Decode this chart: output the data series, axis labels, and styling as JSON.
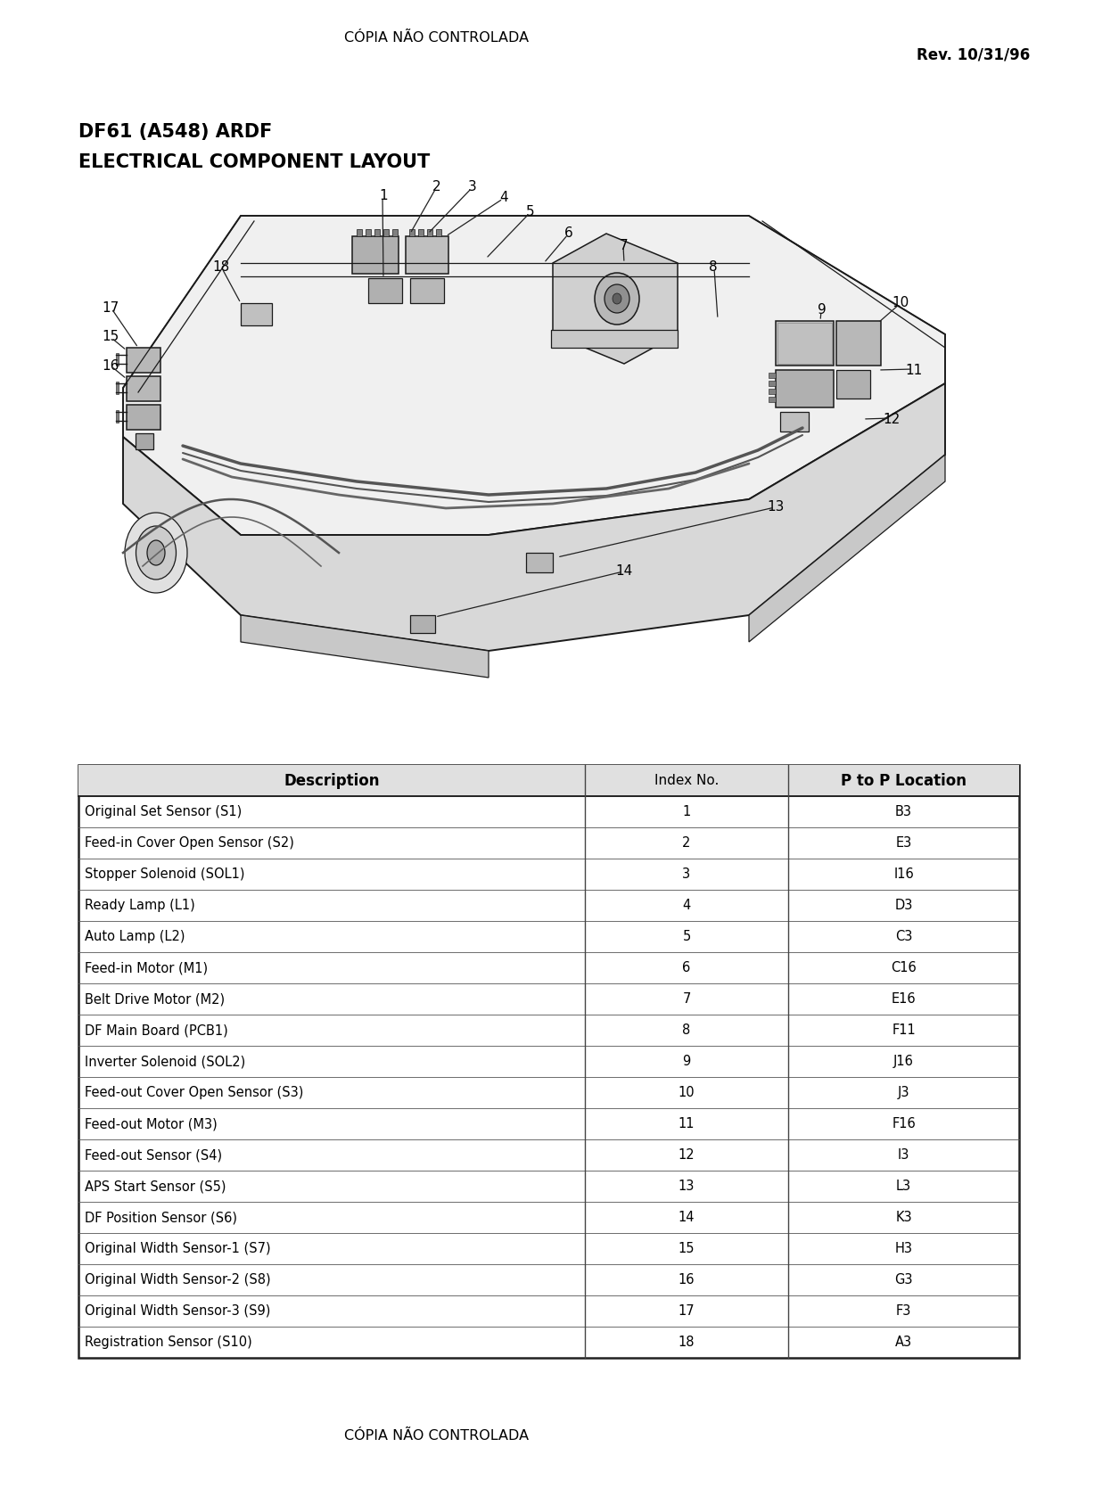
{
  "header_center": "CÓPIA NÃO CONTROLADA",
  "header_right": "Rev. 10/31/96",
  "title_line1": "DF61 (A548) ARDF",
  "title_line2": "ELECTRICAL COMPONENT LAYOUT",
  "footer_center": "CÓPIA NÃO CONTROLADA",
  "table_headers": [
    "Description",
    "Index No.",
    "P to P Location"
  ],
  "table_rows": [
    [
      "Original Set Sensor (S1)",
      "1",
      "B3"
    ],
    [
      "Feed-in Cover Open Sensor (S2)",
      "2",
      "E3"
    ],
    [
      "Stopper Solenoid (SOL1)",
      "3",
      "I16"
    ],
    [
      "Ready Lamp (L1)",
      "4",
      "D3"
    ],
    [
      "Auto Lamp (L2)",
      "5",
      "C3"
    ],
    [
      "Feed-in Motor (M1)",
      "6",
      "C16"
    ],
    [
      "Belt Drive Motor (M2)",
      "7",
      "E16"
    ],
    [
      "DF Main Board (PCB1)",
      "8",
      "F11"
    ],
    [
      "Inverter Solenoid (SOL2)",
      "9",
      "J16"
    ],
    [
      "Feed-out Cover Open Sensor (S3)",
      "10",
      "J3"
    ],
    [
      "Feed-out Motor (M3)",
      "11",
      "F16"
    ],
    [
      "Feed-out Sensor (S4)",
      "12",
      "I3"
    ],
    [
      "APS Start Sensor (S5)",
      "13",
      "L3"
    ],
    [
      "DF Position Sensor (S6)",
      "14",
      "K3"
    ],
    [
      "Original Width Sensor-1 (S7)",
      "15",
      "H3"
    ],
    [
      "Original Width Sensor-2 (S8)",
      "16",
      "G3"
    ],
    [
      "Original Width Sensor-3 (S9)",
      "17",
      "F3"
    ],
    [
      "Registration Sensor (S10)",
      "18",
      "A3"
    ]
  ],
  "bg_color": "#ffffff",
  "text_color": "#000000"
}
